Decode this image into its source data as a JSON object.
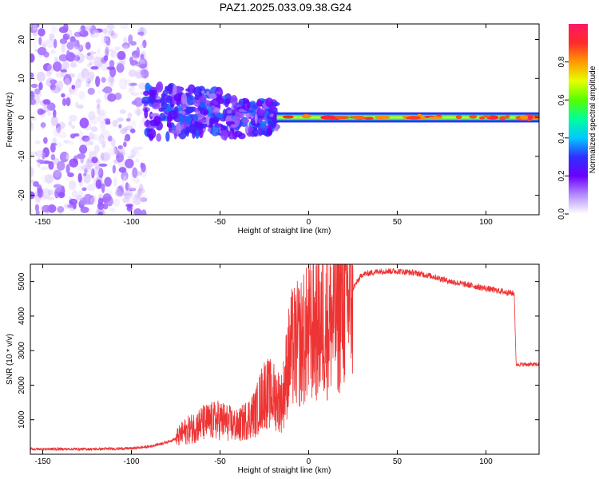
{
  "title": "PAZ1.2025.033.09.38.G24",
  "colorbar": {
    "label": "Normalized spectral amplitude",
    "ticks": [
      "0.0",
      "0.2",
      "0.4",
      "0.6",
      "0.8"
    ],
    "colors": [
      "#ffffff",
      "#b58cff",
      "#6a00ff",
      "#2f2fff",
      "#00c8ff",
      "#00ff9c",
      "#55ff00",
      "#e6ff00",
      "#ff9a00",
      "#ff2a2a",
      "#ff1a66"
    ]
  },
  "chart_data": [
    {
      "type": "heatmap",
      "title": "PAZ1.2025.033.09.38.G24",
      "xlabel": "Height of straight line (km)",
      "ylabel": "Frequency (Hz)",
      "xlim": [
        -157,
        130
      ],
      "ylim": [
        -25,
        24
      ],
      "xticks": [
        -150,
        -100,
        -50,
        0,
        50,
        100
      ],
      "yticks": [
        -20,
        -10,
        0,
        10,
        20
      ],
      "xtick_labels": [
        "-150",
        "-100",
        "-50",
        "0",
        "50",
        "100"
      ],
      "ytick_labels": [
        "-20",
        "-10",
        "0",
        "10",
        "20"
      ],
      "colorbar_range": [
        0,
        1
      ],
      "regions": [
        {
          "x_range": [
            -157,
            -92
          ],
          "freq_range": [
            -25,
            24
          ],
          "amplitude_range": [
            0.0,
            0.15
          ]
        },
        {
          "x_range": [
            -92,
            -18
          ],
          "freq_range": [
            -8,
            8
          ],
          "amplitude_range": [
            0.1,
            0.35
          ]
        },
        {
          "x_range": [
            -18,
            130
          ],
          "freq_range": [
            -1,
            1
          ],
          "amplitude_range": [
            0.3,
            0.95
          ]
        }
      ]
    },
    {
      "type": "line",
      "xlabel": "Height of straight line (km)",
      "ylabel": "SNR (10 * v/v)",
      "xlim": [
        -157,
        130
      ],
      "ylim": [
        0,
        5500
      ],
      "xticks": [
        -150,
        -100,
        -50,
        0,
        50,
        100
      ],
      "yticks": [
        1000,
        2000,
        3000,
        4000,
        5000
      ],
      "xtick_labels": [
        "-150",
        "-100",
        "-50",
        "0",
        "50",
        "100"
      ],
      "ytick_labels": [
        "1000",
        "2000",
        "3000",
        "4000",
        "5000"
      ],
      "color": "#ee3333",
      "series": [
        {
          "x": [
            -157,
            -140,
            -120,
            -100,
            -90,
            -80,
            -75,
            -70,
            -60,
            -50,
            -40,
            -30,
            -25,
            -20,
            -15,
            -12,
            -10,
            -5,
            0,
            5,
            10,
            15,
            20,
            25,
            30,
            40,
            50,
            60,
            70,
            80,
            90,
            100,
            110,
            116,
            117,
            120,
            130
          ],
          "y": [
            150,
            150,
            150,
            170,
            220,
            350,
            450,
            650,
            900,
            1000,
            800,
            1200,
            1800,
            1700,
            1500,
            2500,
            3000,
            3200,
            3500,
            3700,
            3800,
            4000,
            4400,
            4800,
            5200,
            5300,
            5300,
            5250,
            5150,
            5000,
            4900,
            4800,
            4700,
            4650,
            2600,
            2600,
            2600
          ]
        }
      ]
    }
  ]
}
